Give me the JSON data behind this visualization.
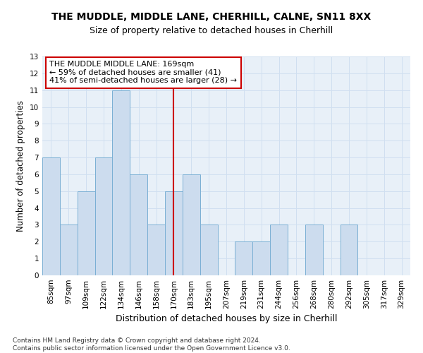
{
  "title": "THE MUDDLE, MIDDLE LANE, CHERHILL, CALNE, SN11 8XX",
  "subtitle": "Size of property relative to detached houses in Cherhill",
  "xlabel": "Distribution of detached houses by size in Cherhill",
  "ylabel": "Number of detached properties",
  "categories": [
    "85sqm",
    "97sqm",
    "109sqm",
    "122sqm",
    "134sqm",
    "146sqm",
    "158sqm",
    "170sqm",
    "183sqm",
    "195sqm",
    "207sqm",
    "219sqm",
    "231sqm",
    "244sqm",
    "256sqm",
    "268sqm",
    "280sqm",
    "292sqm",
    "305sqm",
    "317sqm",
    "329sqm"
  ],
  "values": [
    7,
    3,
    5,
    7,
    11,
    6,
    3,
    5,
    6,
    3,
    0,
    2,
    2,
    3,
    0,
    3,
    0,
    3,
    0,
    0,
    0
  ],
  "bar_color": "#ccdcee",
  "bar_edge_color": "#7aafd4",
  "vline_color": "#cc0000",
  "vline_x": 7,
  "annotation_text": "THE MUDDLE MIDDLE LANE: 169sqm\n← 59% of detached houses are smaller (41)\n41% of semi-detached houses are larger (28) →",
  "annotation_box_color": "#ffffff",
  "annotation_box_edge": "#cc0000",
  "ylim": [
    0,
    13
  ],
  "yticks": [
    0,
    1,
    2,
    3,
    4,
    5,
    6,
    7,
    8,
    9,
    10,
    11,
    12,
    13
  ],
  "grid_color": "#d0dff0",
  "background_color": "#e8f0f8",
  "footnote": "Contains HM Land Registry data © Crown copyright and database right 2024.\nContains public sector information licensed under the Open Government Licence v3.0.",
  "title_fontsize": 10,
  "subtitle_fontsize": 9,
  "xlabel_fontsize": 9,
  "ylabel_fontsize": 8.5,
  "tick_fontsize": 7.5,
  "annot_fontsize": 8,
  "footnote_fontsize": 6.5
}
